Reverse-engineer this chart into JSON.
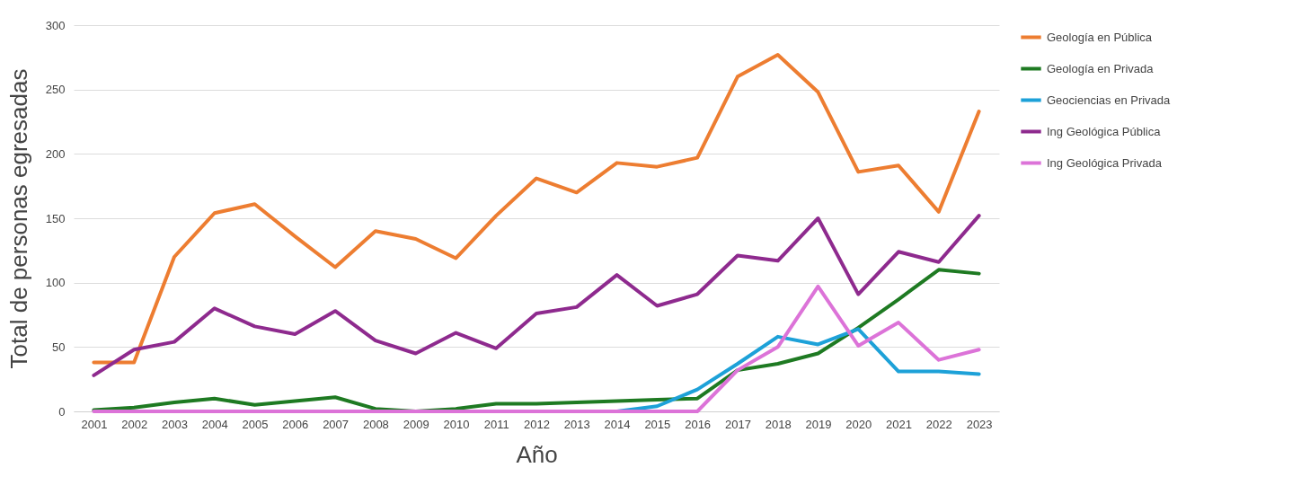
{
  "chart_data": {
    "type": "line",
    "xlabel": "Año",
    "ylabel": "Total de personas egresadas",
    "categories": [
      "2001",
      "2002",
      "2003",
      "2004",
      "2005",
      "2006",
      "2007",
      "2008",
      "2009",
      "2010",
      "2011",
      "2012",
      "2013",
      "2014",
      "2015",
      "2016",
      "2017",
      "2018",
      "2019",
      "2020",
      "2021",
      "2022",
      "2023"
    ],
    "series": [
      {
        "name": "Geología en Pública",
        "color": "#ed7d31",
        "values": [
          38,
          38,
          120,
          154,
          161,
          136,
          112,
          140,
          134,
          119,
          152,
          181,
          170,
          193,
          190,
          197,
          260,
          277,
          248,
          186,
          191,
          155,
          233
        ]
      },
      {
        "name": "Geología en Privada",
        "color": "#1e7a22",
        "values": [
          1,
          3,
          7,
          10,
          5,
          8,
          11,
          2,
          0,
          2,
          6,
          6,
          7,
          8,
          9,
          10,
          32,
          37,
          45,
          65,
          87,
          110,
          107
        ]
      },
      {
        "name": "Geociencias en Privada",
        "color": "#1da1d8",
        "values": [
          null,
          null,
          null,
          null,
          null,
          null,
          null,
          null,
          null,
          null,
          null,
          null,
          null,
          0,
          4,
          17,
          37,
          58,
          52,
          64,
          31,
          31,
          29
        ]
      },
      {
        "name": "Ing Geológica Pública",
        "color": "#8e2a8e",
        "values": [
          28,
          48,
          54,
          80,
          66,
          60,
          78,
          55,
          45,
          61,
          49,
          76,
          81,
          106,
          82,
          91,
          121,
          117,
          150,
          91,
          124,
          116,
          152
        ]
      },
      {
        "name": "Ing Geológica Privada",
        "color": "#dc73d8",
        "values": [
          0,
          0,
          0,
          0,
          0,
          0,
          0,
          0,
          0,
          0,
          0,
          0,
          0,
          0,
          0,
          0,
          32,
          50,
          97,
          51,
          69,
          40,
          48
        ]
      }
    ],
    "ylim": [
      0,
      300
    ],
    "yticks": [
      0,
      50,
      100,
      150,
      200,
      250,
      300
    ],
    "grid": "y",
    "legend": "right",
    "marker": "none",
    "line_style": "solid"
  }
}
